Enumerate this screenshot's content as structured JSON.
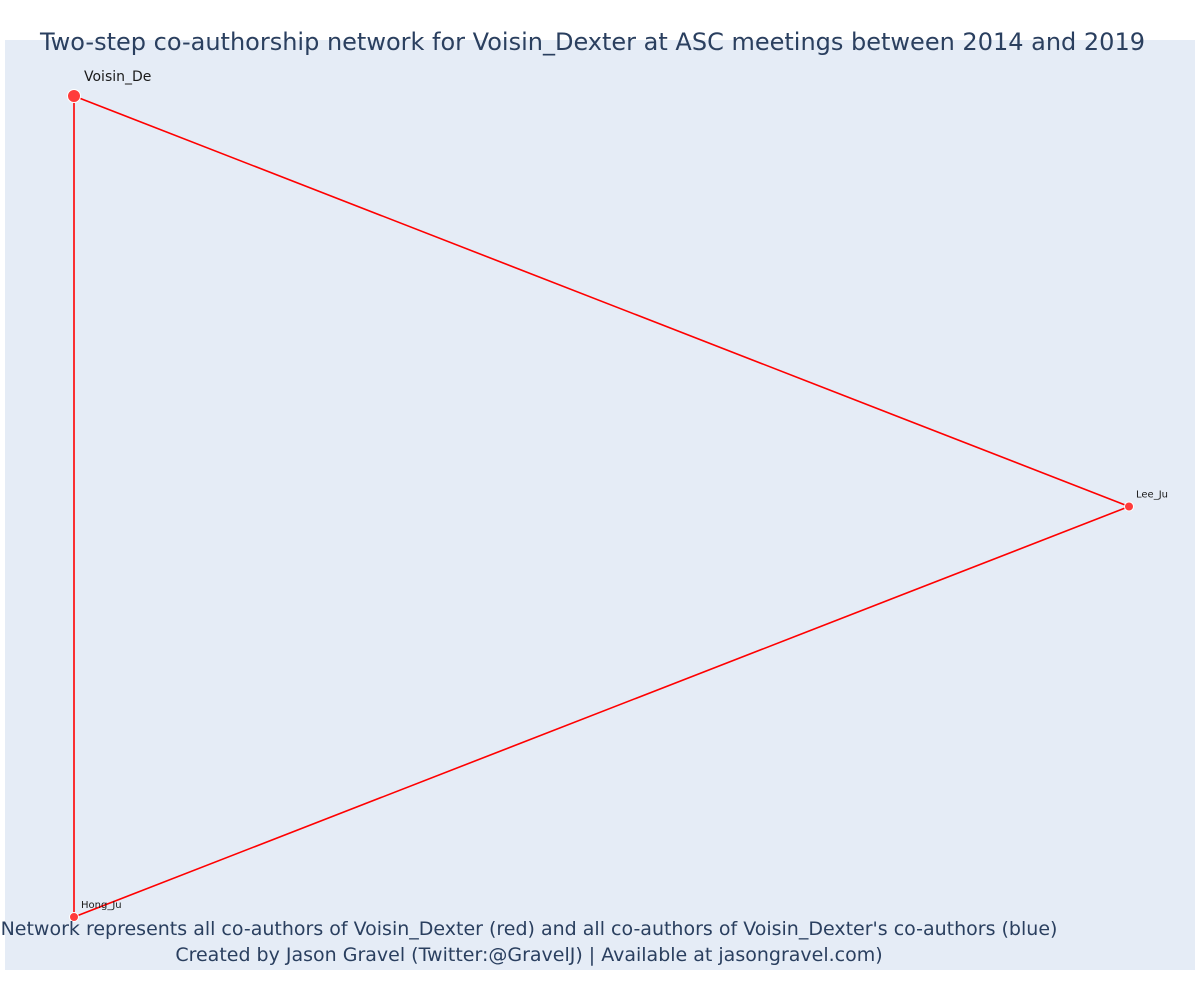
{
  "title": "Two-step co-authorship network for Voisin_Dexter at ASC meetings between 2014 and 2019",
  "caption": {
    "line1": "Network represents all co-authors of Voisin_Dexter (red) and all co-authors of Voisin_Dexter's co-authors (blue)",
    "line2": "Created by Jason Gravel (Twitter:@GravelJ) | Available at jasongravel.com)"
  },
  "colors": {
    "background": "#e5ecf6",
    "edge": "#ff0000",
    "node_first_degree": "#ff3b3b",
    "node_second_degree": "#3b5bff",
    "text": "#2a3f5f"
  },
  "chart_data": {
    "type": "network",
    "nodes": [
      {
        "id": "Voisin_De",
        "label": "Voisin_De",
        "group": "focal",
        "x": 0.0,
        "y": 1.0
      },
      {
        "id": "Lee_Ju",
        "label": "Lee_Ju",
        "group": "co-author",
        "x": 1.0,
        "y": 0.5
      },
      {
        "id": "Hong_Ju",
        "label": "Hong_Ju",
        "group": "co-author",
        "x": 0.0,
        "y": 0.0
      }
    ],
    "edges": [
      {
        "source": "Voisin_De",
        "target": "Lee_Ju"
      },
      {
        "source": "Lee_Ju",
        "target": "Hong_Ju"
      },
      {
        "source": "Hong_Ju",
        "target": "Voisin_De"
      }
    ]
  }
}
